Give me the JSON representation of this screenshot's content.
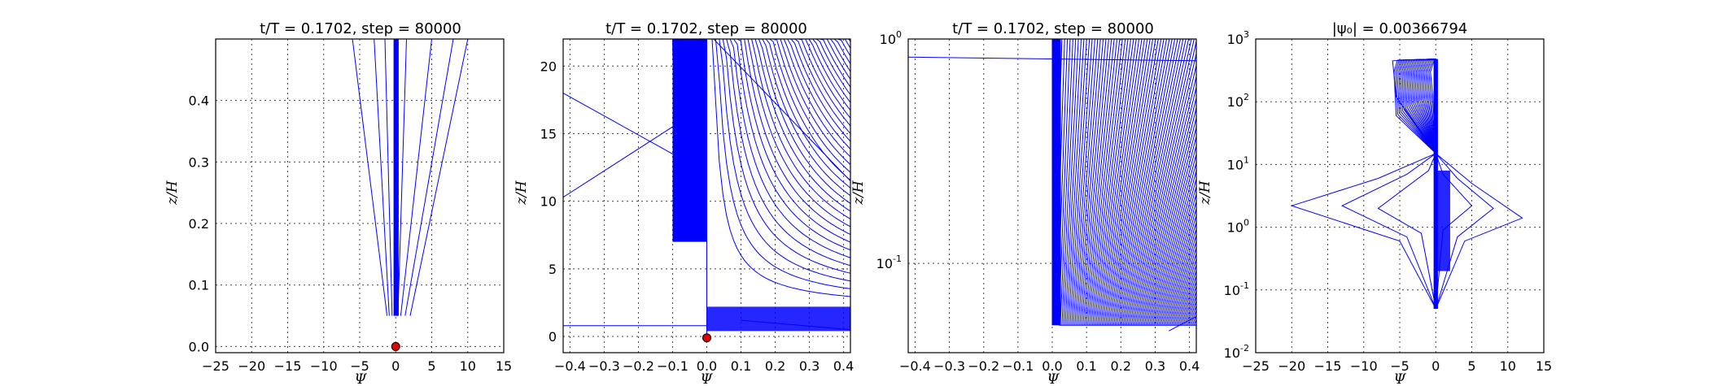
{
  "chart_data": [
    {
      "type": "line",
      "title": "t/T = 0.1702, step = 80000",
      "xlabel": "Ψ",
      "ylabel": "z/H",
      "xlim": [
        -25,
        15
      ],
      "ylim": [
        -0.01,
        0.5
      ],
      "yscale": "linear",
      "grid": true,
      "xticks": [
        "−25",
        "−20",
        "−15",
        "−10",
        "−5",
        "0",
        "5",
        "10",
        "15"
      ],
      "yticks": [
        "0.0",
        "0.1",
        "0.2",
        "0.3",
        "0.4"
      ],
      "series": [
        {
          "values": [
            [
              -0.2,
              0.05
            ],
            [
              0,
              0.5
            ]
          ]
        },
        {
          "values": [
            [
              -0.5,
              0.05
            ],
            [
              -1.5,
              0.5
            ]
          ]
        },
        {
          "values": [
            [
              -0.9,
              0.05
            ],
            [
              -3,
              0.5
            ]
          ]
        },
        {
          "values": [
            [
              -1.2,
              0.05
            ],
            [
              -6,
              0.5
            ]
          ]
        },
        {
          "values": [
            [
              0.3,
              0.05
            ],
            [
              1.5,
              0.5
            ]
          ]
        },
        {
          "values": [
            [
              0.7,
              0.05
            ],
            [
              5,
              0.5
            ]
          ]
        },
        {
          "values": [
            [
              1.3,
              0.05
            ],
            [
              8,
              0.5
            ]
          ]
        },
        {
          "values": [
            [
              2,
              0.05
            ],
            [
              10,
              0.5
            ]
          ]
        }
      ],
      "markers": [
        {
          "x": 0,
          "y": 0,
          "color": "#dd0000"
        }
      ]
    },
    {
      "type": "line",
      "title": "t/T = 0.1702, step = 80000",
      "xlabel": "Ψ",
      "ylabel": "z/H",
      "xlim": [
        -0.42,
        0.42
      ],
      "ylim": [
        -1.2,
        22
      ],
      "yscale": "linear",
      "grid": true,
      "xticks": [
        "−0.4",
        "−0.3",
        "−0.2",
        "−0.1",
        "0.0",
        "0.1",
        "0.2",
        "0.3",
        "0.4"
      ],
      "yticks": [
        "0",
        "5",
        "10",
        "15",
        "20"
      ],
      "series": [
        {
          "values": [
            [
              -0.42,
              0.8
            ],
            [
              0,
              0.8
            ]
          ]
        },
        {
          "values": [
            [
              0,
              0
            ],
            [
              0,
              22
            ]
          ]
        },
        {
          "values": [
            [
              -0.09,
              7
            ],
            [
              -0.1,
              22
            ]
          ]
        },
        {
          "values": [
            [
              0.02,
              22
            ],
            [
              0.42,
              11.5
            ]
          ]
        },
        {
          "values": [
            [
              0.42,
              0.5
            ],
            [
              0.1,
              1.2
            ]
          ]
        },
        {
          "values": [
            [
              -0.42,
              10.3
            ],
            [
              -0.1,
              15.5
            ]
          ]
        },
        {
          "values": [
            [
              -0.42,
              18
            ],
            [
              -0.1,
              13.5
            ]
          ]
        }
      ],
      "markers": [
        {
          "x": 0,
          "y": -0.1,
          "color": "#dd0000"
        }
      ]
    },
    {
      "type": "line",
      "title": "t/T = 0.1702, step = 80000",
      "xlabel": "Ψ",
      "ylabel": "z/H",
      "xlim": [
        -0.42,
        0.42
      ],
      "ylim": [
        0.04,
        1.0
      ],
      "yscale": "log",
      "grid": true,
      "xticks": [
        "−0.4",
        "−0.3",
        "−0.2",
        "−0.1",
        "0.0",
        "0.1",
        "0.2",
        "0.3",
        "0.4"
      ],
      "yticks": [
        {
          "base": "10",
          "exp": "0"
        },
        {
          "base": "10",
          "exp": "-1"
        }
      ],
      "series": [
        {
          "values": [
            [
              -0.42,
              0.83
            ],
            [
              0.42,
              0.8
            ]
          ]
        },
        {
          "values": [
            [
              0,
              0.053
            ],
            [
              0,
              1.0
            ]
          ]
        },
        {
          "values": [
            [
              0.02,
              0.053
            ],
            [
              0.42,
              0.053
            ]
          ]
        },
        {
          "values": [
            [
              0.34,
              0.05
            ],
            [
              0.42,
              0.058
            ]
          ]
        }
      ],
      "markers": []
    },
    {
      "type": "line",
      "title": "|ψ₀| = 0.00366794",
      "xlabel": "Ψ",
      "ylabel": "z/H",
      "xlim": [
        -25,
        15
      ],
      "ylim": [
        0.01,
        1000
      ],
      "yscale": "log",
      "grid": true,
      "xticks": [
        "−25",
        "−20",
        "−15",
        "−10",
        "−5",
        "0",
        "5",
        "10",
        "15"
      ],
      "yticks": [
        {
          "base": "10",
          "exp": "3"
        },
        {
          "base": "10",
          "exp": "2"
        },
        {
          "base": "10",
          "exp": "1"
        },
        {
          "base": "10",
          "exp": "0"
        },
        {
          "base": "10",
          "exp": "-1"
        },
        {
          "base": "10",
          "exp": "-2"
        }
      ],
      "series": [
        {
          "values": [
            [
              0,
              0.05
            ],
            [
              -5,
              0.6
            ],
            [
              -20,
              2.2
            ],
            [
              -8,
              6
            ],
            [
              0,
              15
            ]
          ]
        },
        {
          "values": [
            [
              0,
              0.05
            ],
            [
              -4,
              0.7
            ],
            [
              -13,
              2.2
            ],
            [
              -4,
              7
            ],
            [
              0,
              15
            ]
          ]
        },
        {
          "values": [
            [
              0,
              0.05
            ],
            [
              -2,
              0.8
            ],
            [
              -8,
              2.0
            ],
            [
              -1,
              8
            ],
            [
              0,
              15
            ]
          ]
        },
        {
          "values": [
            [
              0,
              0.05
            ],
            [
              4,
              0.6
            ],
            [
              12,
              1.4
            ],
            [
              5,
              5
            ],
            [
              0,
              15
            ]
          ]
        },
        {
          "values": [
            [
              0,
              0.05
            ],
            [
              3,
              0.7
            ],
            [
              8,
              2.0
            ],
            [
              3,
              6
            ],
            [
              0,
              15
            ]
          ]
        },
        {
          "values": [
            [
              0,
              0.05
            ],
            [
              1,
              0.9
            ],
            [
              5,
              2.2
            ],
            [
              1,
              7
            ],
            [
              0,
              15
            ]
          ]
        },
        {
          "values": [
            [
              0,
              15
            ],
            [
              -5.5,
              120
            ],
            [
              -6,
              450
            ],
            [
              0,
              480
            ]
          ]
        }
      ],
      "markers": []
    }
  ]
}
